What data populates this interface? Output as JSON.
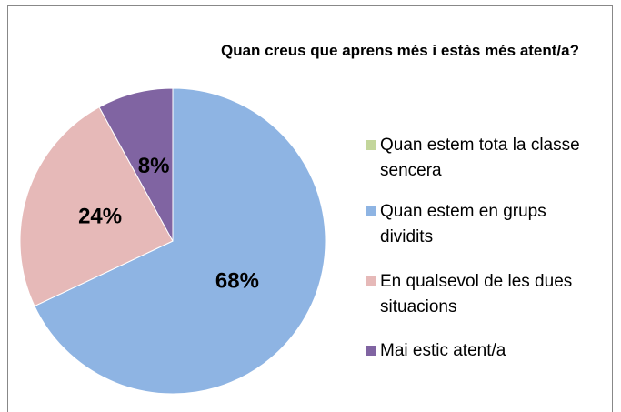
{
  "chart_data": {
    "type": "pie",
    "title": "Quan creus que aprens més i estàs més atent/a?",
    "categories": [
      "Quan estem tota la classe sencera",
      "Quan estem en grups dividits",
      "En qualsevol de les dues situacions",
      "Mai estic atent/a"
    ],
    "values": [
      0,
      68,
      24,
      8
    ],
    "value_labels": [
      null,
      "68%",
      "24%",
      "8%"
    ],
    "colors": [
      "#c3d69b",
      "#8eb4e3",
      "#e6b9b8",
      "#8064a2"
    ],
    "legend": "right"
  }
}
